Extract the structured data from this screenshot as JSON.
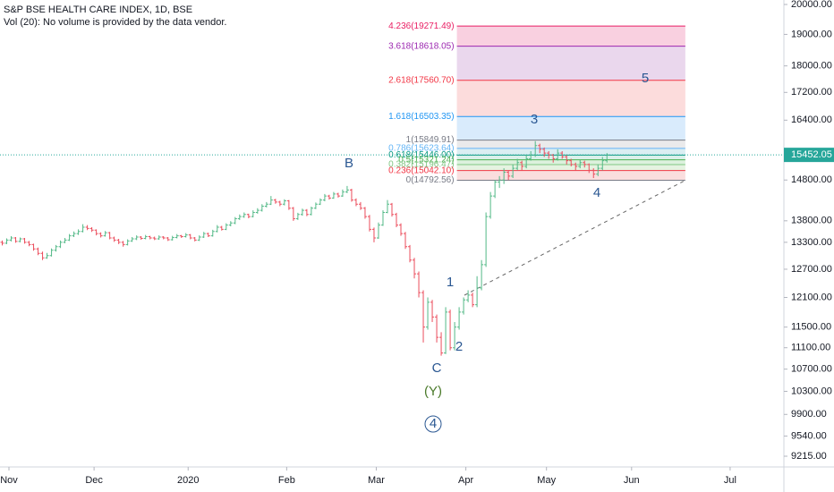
{
  "chart_data": {
    "type": "ohlc",
    "title": "S&P BSE HEALTH CARE INDEX, 1D, BSE",
    "subtitle": "Vol (20): No volume is provided by the data vendor.",
    "up_color": "#53b987",
    "down_color": "#eb4d5c",
    "log_scale": true,
    "ylim": [
      9047,
      20154
    ],
    "yticks": [
      {
        "value": 20000,
        "label": "20000.00"
      },
      {
        "value": 19000,
        "label": "19000.00"
      },
      {
        "value": 18000,
        "label": "18000.00"
      },
      {
        "value": 17200,
        "label": "17200.00"
      },
      {
        "value": 16400,
        "label": "16400.00"
      },
      {
        "value": 14800,
        "label": "14800.00"
      },
      {
        "value": 13800,
        "label": "13800.00"
      },
      {
        "value": 13300,
        "label": "13300.00"
      },
      {
        "value": 12700,
        "label": "12700.00"
      },
      {
        "value": 12100,
        "label": "12100.00"
      },
      {
        "value": 11500,
        "label": "11500.00"
      },
      {
        "value": 11100,
        "label": "11100.00"
      },
      {
        "value": 10700,
        "label": "10700.00"
      },
      {
        "value": 10300,
        "label": "10300.00"
      },
      {
        "value": 9900,
        "label": "9900.00"
      },
      {
        "value": 9540,
        "label": "9540.00"
      },
      {
        "value": 9215,
        "label": "9215.00"
      }
    ],
    "xlim": [
      0,
      175
    ],
    "xticks": [
      {
        "value": 2,
        "label": "Nov"
      },
      {
        "value": 21,
        "label": "Dec"
      },
      {
        "value": 42,
        "label": "2020"
      },
      {
        "value": 64,
        "label": "Feb"
      },
      {
        "value": 84,
        "label": "Mar"
      },
      {
        "value": 104,
        "label": "Apr"
      },
      {
        "value": 122,
        "label": "May"
      },
      {
        "value": 141,
        "label": "Jun"
      },
      {
        "value": 163,
        "label": "Jul"
      }
    ],
    "ohlc": [
      [
        13300,
        13340,
        13230,
        13280
      ],
      [
        13280,
        13390,
        13260,
        13350
      ],
      [
        13350,
        13440,
        13320,
        13400
      ],
      [
        13400,
        13420,
        13290,
        13320
      ],
      [
        13320,
        13410,
        13300,
        13380
      ],
      [
        13380,
        13400,
        13270,
        13300
      ],
      [
        13300,
        13330,
        13210,
        13250
      ],
      [
        13250,
        13270,
        13110,
        13150
      ],
      [
        13150,
        13180,
        13010,
        13050
      ],
      [
        13050,
        13090,
        12900,
        12950
      ],
      [
        12950,
        13060,
        12930,
        13000
      ],
      [
        13000,
        13160,
        12980,
        13120
      ],
      [
        13120,
        13240,
        13090,
        13200
      ],
      [
        13200,
        13340,
        13170,
        13300
      ],
      [
        13300,
        13400,
        13280,
        13350
      ],
      [
        13350,
        13490,
        13330,
        13450
      ],
      [
        13450,
        13550,
        13420,
        13500
      ],
      [
        13500,
        13600,
        13470,
        13550
      ],
      [
        13550,
        13720,
        13530,
        13650
      ],
      [
        13650,
        13700,
        13580,
        13620
      ],
      [
        13620,
        13650,
        13540,
        13580
      ],
      [
        13580,
        13600,
        13460,
        13500
      ],
      [
        13500,
        13530,
        13410,
        13450
      ],
      [
        13450,
        13560,
        13430,
        13520
      ],
      [
        13520,
        13540,
        13370,
        13400
      ],
      [
        13400,
        13430,
        13310,
        13350
      ],
      [
        13350,
        13380,
        13260,
        13300
      ],
      [
        13300,
        13330,
        13200,
        13250
      ],
      [
        13250,
        13370,
        13230,
        13330
      ],
      [
        13330,
        13420,
        13310,
        13380
      ],
      [
        13380,
        13460,
        13350,
        13420
      ],
      [
        13420,
        13440,
        13360,
        13390
      ],
      [
        13390,
        13470,
        13370,
        13430
      ],
      [
        13430,
        13450,
        13370,
        13400
      ],
      [
        13400,
        13430,
        13350,
        13380
      ],
      [
        13380,
        13460,
        13360,
        13420
      ],
      [
        13420,
        13440,
        13370,
        13400
      ],
      [
        13400,
        13420,
        13330,
        13360
      ],
      [
        13360,
        13450,
        13340,
        13410
      ],
      [
        13410,
        13490,
        13390,
        13450
      ],
      [
        13450,
        13470,
        13400,
        13430
      ],
      [
        13430,
        13510,
        13410,
        13470
      ],
      [
        13470,
        13490,
        13370,
        13400
      ],
      [
        13400,
        13420,
        13320,
        13350
      ],
      [
        13350,
        13460,
        13330,
        13420
      ],
      [
        13420,
        13540,
        13400,
        13500
      ],
      [
        13500,
        13520,
        13420,
        13450
      ],
      [
        13450,
        13590,
        13430,
        13550
      ],
      [
        13550,
        13700,
        13530,
        13650
      ],
      [
        13650,
        13680,
        13570,
        13600
      ],
      [
        13600,
        13740,
        13580,
        13700
      ],
      [
        13700,
        13790,
        13670,
        13750
      ],
      [
        13750,
        13890,
        13720,
        13850
      ],
      [
        13850,
        13950,
        13820,
        13900
      ],
      [
        13900,
        14000,
        13870,
        13950
      ],
      [
        13950,
        13970,
        13860,
        13900
      ],
      [
        13900,
        14050,
        13880,
        14000
      ],
      [
        14000,
        14100,
        13970,
        14050
      ],
      [
        14050,
        14200,
        14020,
        14150
      ],
      [
        14150,
        14250,
        14120,
        14200
      ],
      [
        14200,
        14400,
        14180,
        14300
      ],
      [
        14300,
        14330,
        14210,
        14250
      ],
      [
        14250,
        14280,
        14150,
        14200
      ],
      [
        14200,
        14320,
        14170,
        14280
      ],
      [
        14280,
        14300,
        14060,
        14100
      ],
      [
        14100,
        14130,
        13800,
        13850
      ],
      [
        13850,
        13990,
        13820,
        13950
      ],
      [
        13950,
        14090,
        13920,
        14050
      ],
      [
        14050,
        14080,
        13910,
        13950
      ],
      [
        13950,
        14140,
        13930,
        14100
      ],
      [
        14100,
        14240,
        14080,
        14200
      ],
      [
        14200,
        14340,
        14180,
        14300
      ],
      [
        14300,
        14450,
        14270,
        14400
      ],
      [
        14400,
        14430,
        14310,
        14350
      ],
      [
        14350,
        14500,
        14330,
        14450
      ],
      [
        14450,
        14480,
        14360,
        14400
      ],
      [
        14400,
        14560,
        14380,
        14500
      ],
      [
        14500,
        14650,
        14470,
        14550
      ],
      [
        14550,
        14580,
        14260,
        14300
      ],
      [
        14300,
        14340,
        14150,
        14200
      ],
      [
        14200,
        14250,
        14060,
        14100
      ],
      [
        14100,
        14130,
        13850,
        13900
      ],
      [
        13900,
        13940,
        13550,
        13600
      ],
      [
        13600,
        13640,
        13300,
        13400
      ],
      [
        13400,
        13760,
        13380,
        13700
      ],
      [
        13700,
        14050,
        13680,
        14000
      ],
      [
        14000,
        14300,
        13980,
        14200
      ],
      [
        14200,
        14230,
        13900,
        13950
      ],
      [
        13950,
        13990,
        13650,
        13700
      ],
      [
        13700,
        13740,
        13450,
        13500
      ],
      [
        13500,
        13540,
        13150,
        13200
      ],
      [
        13200,
        13240,
        12850,
        12900
      ],
      [
        12900,
        12950,
        12500,
        12600
      ],
      [
        12600,
        12650,
        12100,
        12200
      ],
      [
        12200,
        12250,
        11200,
        11500
      ],
      [
        11500,
        12100,
        11450,
        12000
      ],
      [
        12000,
        12050,
        11600,
        11700
      ],
      [
        11700,
        11750,
        11200,
        11300
      ],
      [
        11300,
        11400,
        10950,
        11000
      ],
      [
        11000,
        11900,
        10980,
        11800
      ],
      [
        11800,
        11850,
        11050,
        11100
      ],
      [
        11100,
        11600,
        11050,
        11500
      ],
      [
        11500,
        11900,
        11450,
        11800
      ],
      [
        11800,
        12100,
        11750,
        12050
      ],
      [
        12050,
        12250,
        12000,
        12150
      ],
      [
        12150,
        12200,
        11900,
        11950
      ],
      [
        11950,
        12550,
        11900,
        12300
      ],
      [
        12300,
        12900,
        12250,
        12800
      ],
      [
        12800,
        14000,
        12750,
        13900
      ],
      [
        13900,
        14500,
        13850,
        14400
      ],
      [
        14400,
        14800,
        14350,
        14750
      ],
      [
        14750,
        14900,
        14600,
        14800
      ],
      [
        14800,
        15100,
        14700,
        15000
      ],
      [
        15000,
        15050,
        14800,
        14900
      ],
      [
        14900,
        15200,
        14850,
        15100
      ],
      [
        15100,
        15350,
        15050,
        15250
      ],
      [
        15250,
        15300,
        15050,
        15150
      ],
      [
        15150,
        15450,
        15100,
        15350
      ],
      [
        15350,
        15550,
        15300,
        15450
      ],
      [
        15450,
        15820,
        15400,
        15700
      ],
      [
        15700,
        15750,
        15500,
        15600
      ],
      [
        15600,
        15650,
        15400,
        15500
      ],
      [
        15500,
        15550,
        15350,
        15450
      ],
      [
        15450,
        15480,
        15250,
        15350
      ],
      [
        15350,
        15600,
        15300,
        15500
      ],
      [
        15500,
        15550,
        15350,
        15400
      ],
      [
        15400,
        15450,
        15200,
        15300
      ],
      [
        15300,
        15350,
        15150,
        15200
      ],
      [
        15200,
        15250,
        15050,
        15150
      ],
      [
        15150,
        15320,
        15100,
        15250
      ],
      [
        15250,
        15300,
        15120,
        15200
      ],
      [
        15200,
        15230,
        14980,
        15050
      ],
      [
        15050,
        15100,
        14850,
        14950
      ],
      [
        14950,
        15200,
        14900,
        15100
      ],
      [
        15100,
        15400,
        15050,
        15300
      ],
      [
        15300,
        15500,
        15250,
        15452.05
      ]
    ],
    "price_line_color": "#26a69a",
    "fib_x": [
      102,
      153
    ],
    "fib_levels": [
      {
        "label": "4.236(19271.49)",
        "value": 19271.49,
        "color": "#e91e63",
        "band": "#f8c8da"
      },
      {
        "label": "3.618(18618.05)",
        "value": 18618.05,
        "color": "#9c27b0",
        "band": "#e6d0ea"
      },
      {
        "label": "2.618(17560.70)",
        "value": 17560.7,
        "color": "#f23645",
        "band": "#fcd6d6"
      },
      {
        "label": "1.618(16503.35)",
        "value": 16503.35,
        "color": "#2196f3",
        "band": "#d2e7fb"
      },
      {
        "label": "1(15849.91)",
        "value": 15849.91,
        "color": "#787b86",
        "band": "#e6e6e8"
      },
      {
        "label": "0.786(15623.64)",
        "value": 15623.64,
        "color": "#64b5f6",
        "band": "#d3ebf0"
      },
      {
        "label": "0.618(15446.00)",
        "value": 15446.0,
        "color": "#089981",
        "band": "#d3ede6"
      },
      {
        "label": "0.5(15321.24)",
        "value": 15321.24,
        "color": "#4caf50",
        "band": "#d6eed7"
      },
      {
        "label": "0.382(15196.47)",
        "value": 15196.47,
        "color": "#81c784",
        "band": "#e1f1dc"
      },
      {
        "label": "0.236(15042.10)",
        "value": 15042.1,
        "color": "#f23645",
        "band": "#f9d8d8"
      },
      {
        "label": "0(14792.56)",
        "value": 14792.56,
        "color": "#787b86"
      }
    ],
    "annotations": [
      "B",
      "1",
      "2",
      "C",
      "(Y)",
      "4",
      "3",
      "4",
      "5"
    ]
  }
}
